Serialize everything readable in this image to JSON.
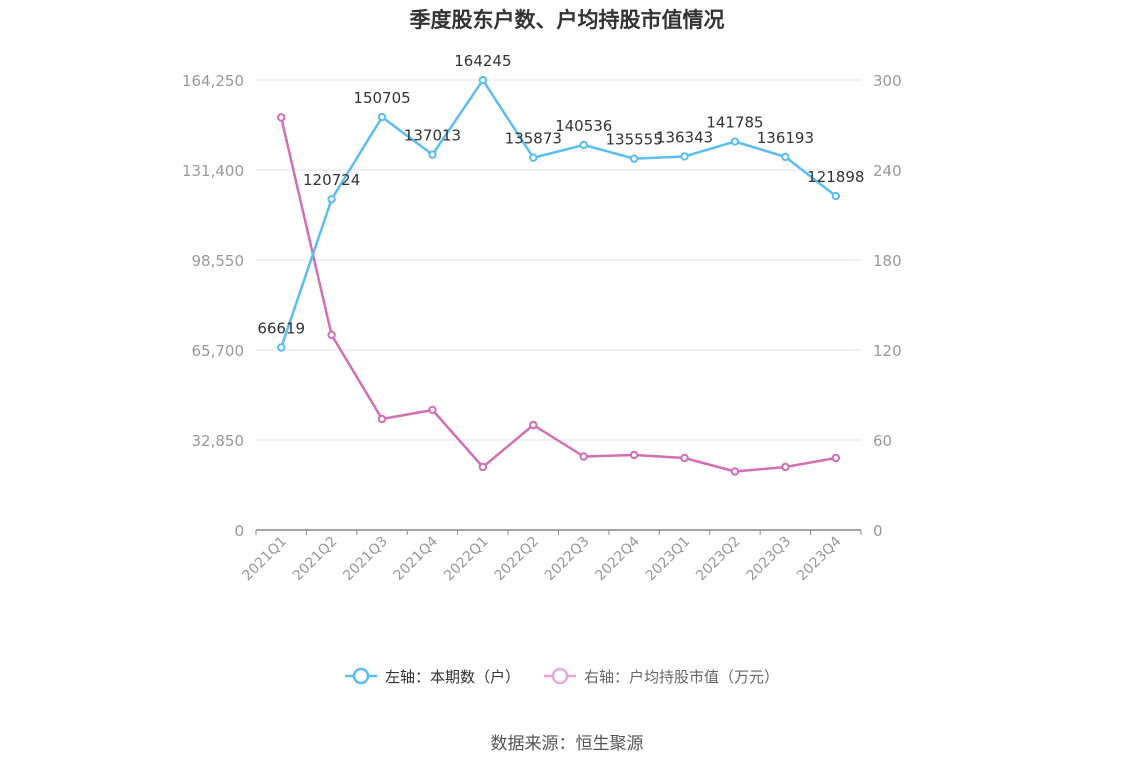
{
  "title": "季度股东户数、户均持股市值情况",
  "source": "数据来源：恒生聚源",
  "colors": {
    "series_left": "#5bbdf0",
    "series_right": "#d36fb3",
    "legend_right": "#e9a9d2",
    "grid": "#e1e3f0",
    "axis": "#888888",
    "tick_text": "#999999",
    "label_text": "#333333"
  },
  "chart_data": {
    "type": "line",
    "title": "季度股东户数、户均持股市值情况",
    "categories": [
      "2021Q1",
      "2021Q2",
      "2021Q3",
      "2021Q4",
      "2022Q1",
      "2022Q2",
      "2022Q3",
      "2022Q4",
      "2023Q1",
      "2023Q2",
      "2023Q3",
      "2023Q4"
    ],
    "left_axis": {
      "ylim": [
        0,
        164250
      ],
      "ticks": [
        "0",
        "32,850",
        "65,700",
        "98,550",
        "131,400",
        "164,250"
      ]
    },
    "right_axis": {
      "ylim": [
        0,
        300
      ],
      "ticks": [
        "0",
        "60",
        "120",
        "180",
        "240",
        "300"
      ]
    },
    "series": [
      {
        "name": "左轴：本期数（户）",
        "axis": "left",
        "values": [
          66619,
          120724,
          150705,
          137013,
          164245,
          135873,
          140536,
          135555,
          136343,
          141785,
          136193,
          121898
        ],
        "labels": [
          "66619",
          "120724",
          "150705",
          "137013",
          "164245",
          "135873",
          "140536",
          "135555",
          "136343",
          "141785",
          "136193",
          "121898"
        ]
      },
      {
        "name": "右轴：户均持股市值（万元）",
        "axis": "right",
        "values": [
          275,
          130,
          74,
          80,
          42,
          70,
          49,
          50,
          48,
          39,
          42,
          48
        ]
      }
    ],
    "grid": true,
    "legend": "bottom-center"
  }
}
